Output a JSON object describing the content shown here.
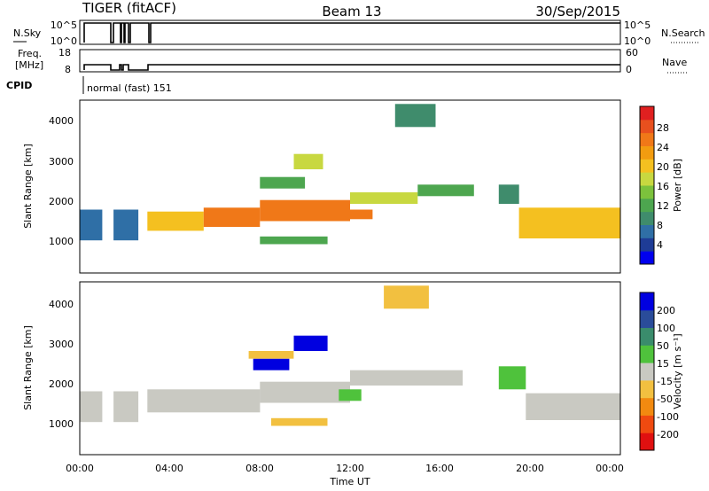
{
  "header": {
    "station": "TIGER (fitACF)",
    "beam": "Beam 13",
    "date": "30/Sep/2015"
  },
  "strip_nsky": {
    "label": "N.Sky",
    "ticks": [
      "10^5",
      "10^0"
    ],
    "right_label": "N.Search",
    "right_ticks": [
      "10^5",
      "10^0"
    ]
  },
  "strip_freq": {
    "label_line1": "Freq.",
    "label_line2": "[MHz]",
    "ticks": [
      "18",
      "8"
    ],
    "right_label": "Nave",
    "right_ticks": [
      "60",
      "0"
    ]
  },
  "strip_cpid": {
    "label": "CPID",
    "text": "normal (fast) 151"
  },
  "panels": {
    "power": {
      "ylabel": "Slant Range [km]",
      "yticks": [
        "4000",
        "3000",
        "2000",
        "1000"
      ],
      "colorbar_label": "Power [dB]",
      "colorbar_ticks": [
        "28",
        "24",
        "20",
        "16",
        "12",
        "8",
        "4"
      ]
    },
    "velocity": {
      "ylabel": "Slant Range [km]",
      "yticks": [
        "4000",
        "3000",
        "2000",
        "1000"
      ],
      "colorbar_label": "Velocity [m s⁻¹]",
      "colorbar_ticks": [
        "200",
        "100",
        "50",
        "15",
        "-15",
        "-50",
        "-100",
        "-200"
      ]
    }
  },
  "xaxis": {
    "label": "Time UT",
    "ticks": [
      "00:00",
      "04:00",
      "08:00",
      "12:00",
      "16:00",
      "20:00",
      "00:00"
    ]
  },
  "chart_data": {
    "type": "heatmap",
    "title": "TIGER (fitACF) Beam 13 30/Sep/2015",
    "xlabel": "Time UT",
    "ylabel": "Slant Range [km]",
    "xlim": [
      0,
      24
    ],
    "ylim": [
      0,
      4500
    ],
    "power_scale": {
      "min": 0,
      "max": 32,
      "unit": "dB"
    },
    "velocity_scale": {
      "min": -250,
      "max": 250,
      "unit": "m s-1"
    },
    "power_colors": [
      "#0000ee",
      "#1e3c96",
      "#2f6fa6",
      "#3f8c6c",
      "#4da64f",
      "#7cc23c",
      "#c8d840",
      "#f4c020",
      "#f29c10",
      "#f07818",
      "#e8501e",
      "#e02020"
    ],
    "velocity_colors": [
      "#e01010",
      "#f04a10",
      "#f28a10",
      "#f2c040",
      "#c9c9c2",
      "#4fc23c",
      "#3a8c6c",
      "#2a4c9a",
      "#0000e0"
    ],
    "power_regions": [
      {
        "t": [
          0.0,
          1.0
        ],
        "r": [
          850,
          1650
        ],
        "power": 6
      },
      {
        "t": [
          1.5,
          2.6
        ],
        "r": [
          850,
          1650
        ],
        "power": 6
      },
      {
        "t": [
          3.0,
          5.5
        ],
        "r": [
          1100,
          1600
        ],
        "power": 20
      },
      {
        "t": [
          5.5,
          8.0
        ],
        "r": [
          1200,
          1700
        ],
        "power": 24
      },
      {
        "t": [
          8.0,
          12.0
        ],
        "r": [
          1350,
          1900
        ],
        "power": 25
      },
      {
        "t": [
          12.0,
          15.0
        ],
        "r": [
          1800,
          2100
        ],
        "power": 18
      },
      {
        "t": [
          15.0,
          17.5
        ],
        "r": [
          2000,
          2300
        ],
        "power": 11
      },
      {
        "t": [
          8.0,
          11.0
        ],
        "r": [
          750,
          950
        ],
        "power": 11
      },
      {
        "t": [
          11.5,
          13.0
        ],
        "r": [
          1400,
          1650
        ],
        "power": 24
      },
      {
        "t": [
          9.5,
          10.8
        ],
        "r": [
          2700,
          3100
        ],
        "power": 17
      },
      {
        "t": [
          8.0,
          10.0
        ],
        "r": [
          2200,
          2500
        ],
        "power": 13
      },
      {
        "t": [
          14.0,
          15.8
        ],
        "r": [
          3800,
          4400
        ],
        "power": 8
      },
      {
        "t": [
          18.6,
          19.5
        ],
        "r": [
          1800,
          2300
        ],
        "power": 10
      },
      {
        "t": [
          19.5,
          24.0
        ],
        "r": [
          900,
          1700
        ],
        "power": 21
      }
    ],
    "velocity_regions": [
      {
        "t": [
          0.0,
          1.0
        ],
        "r": [
          850,
          1650
        ],
        "velocity": -5
      },
      {
        "t": [
          1.5,
          2.6
        ],
        "r": [
          850,
          1650
        ],
        "velocity": -5
      },
      {
        "t": [
          3.0,
          8.0
        ],
        "r": [
          1100,
          1700
        ],
        "velocity": 0
      },
      {
        "t": [
          8.0,
          12.0
        ],
        "r": [
          1350,
          1900
        ],
        "velocity": -5
      },
      {
        "t": [
          12.0,
          17.0
        ],
        "r": [
          1800,
          2200
        ],
        "velocity": 0
      },
      {
        "t": [
          8.5,
          11.0
        ],
        "r": [
          750,
          950
        ],
        "velocity": -30
      },
      {
        "t": [
          11.5,
          12.5
        ],
        "r": [
          1400,
          1700
        ],
        "velocity": 40
      },
      {
        "t": [
          9.5,
          11.0
        ],
        "r": [
          2700,
          3100
        ],
        "velocity": 250
      },
      {
        "t": [
          7.7,
          9.3
        ],
        "r": [
          2200,
          2500
        ],
        "velocity": 220
      },
      {
        "t": [
          7.5,
          9.5
        ],
        "r": [
          2500,
          2700
        ],
        "velocity": -40
      },
      {
        "t": [
          13.5,
          15.5
        ],
        "r": [
          3800,
          4400
        ],
        "velocity": -40
      },
      {
        "t": [
          18.6,
          19.8
        ],
        "r": [
          1700,
          2300
        ],
        "velocity": 30
      },
      {
        "t": [
          19.8,
          24.0
        ],
        "r": [
          900,
          1600
        ],
        "velocity": 0
      }
    ]
  }
}
